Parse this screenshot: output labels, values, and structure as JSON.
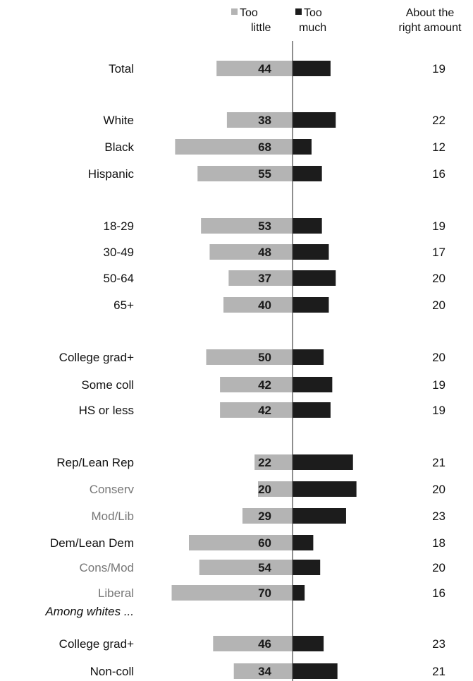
{
  "chart_data": {
    "type": "bar",
    "legend": {
      "too_little": "Too little",
      "too_little_line1": "Too",
      "too_little_line2": "little",
      "too_much": "Too much",
      "too_much_line1": "Too",
      "too_much_line2": "much",
      "right_amount": "About the right amount",
      "right_amount_line1": "About the",
      "right_amount_line2": "right amount",
      "placement": "top"
    },
    "colors": {
      "too_little": "#b4b4b4",
      "too_much": "#1c1c1c"
    },
    "rows": [
      {
        "label": "Total",
        "style": "normal",
        "too_little": 44,
        "too_much": 22,
        "right": 19
      },
      {
        "label": "White",
        "style": "normal",
        "too_little": 38,
        "too_much": 25,
        "right": 22
      },
      {
        "label": "Black",
        "style": "normal",
        "too_little": 68,
        "too_much": 11,
        "right": 12
      },
      {
        "label": "Hispanic",
        "style": "normal",
        "too_little": 55,
        "too_much": 17,
        "right": 16
      },
      {
        "label": "18-29",
        "style": "normal",
        "too_little": 53,
        "too_much": 17,
        "right": 19
      },
      {
        "label": "30-49",
        "style": "normal",
        "too_little": 48,
        "too_much": 21,
        "right": 17
      },
      {
        "label": "50-64",
        "style": "normal",
        "too_little": 37,
        "too_much": 25,
        "right": 20
      },
      {
        "label": "65+",
        "style": "normal",
        "too_little": 40,
        "too_much": 21,
        "right": 20
      },
      {
        "label": "College grad+",
        "style": "normal",
        "too_little": 50,
        "too_much": 18,
        "right": 20
      },
      {
        "label": "Some coll",
        "style": "normal",
        "too_little": 42,
        "too_much": 23,
        "right": 19
      },
      {
        "label": "HS or less",
        "style": "normal",
        "too_little": 42,
        "too_much": 22,
        "right": 19
      },
      {
        "label": "Rep/Lean Rep",
        "style": "normal",
        "too_little": 22,
        "too_much": 35,
        "right": 21
      },
      {
        "label": "Conserv",
        "style": "sub",
        "too_little": 20,
        "too_much": 37,
        "right": 20
      },
      {
        "label": "Mod/Lib",
        "style": "sub",
        "too_little": 29,
        "too_much": 31,
        "right": 23
      },
      {
        "label": "Dem/Lean Dem",
        "style": "normal",
        "too_little": 60,
        "too_much": 12,
        "right": 18
      },
      {
        "label": "Cons/Mod",
        "style": "sub",
        "too_little": 54,
        "too_much": 16,
        "right": 20
      },
      {
        "label": "Liberal",
        "style": "sub",
        "too_little": 70,
        "too_much": 7,
        "right": 16
      },
      {
        "label": "Among whites ...",
        "style": "italic",
        "too_little": null,
        "too_much": null,
        "right": null
      },
      {
        "label": "College grad+",
        "style": "normal",
        "too_little": 46,
        "too_much": 18,
        "right": 23
      },
      {
        "label": "Non-coll",
        "style": "normal",
        "too_little": 34,
        "too_much": 26,
        "right": 21
      }
    ]
  }
}
